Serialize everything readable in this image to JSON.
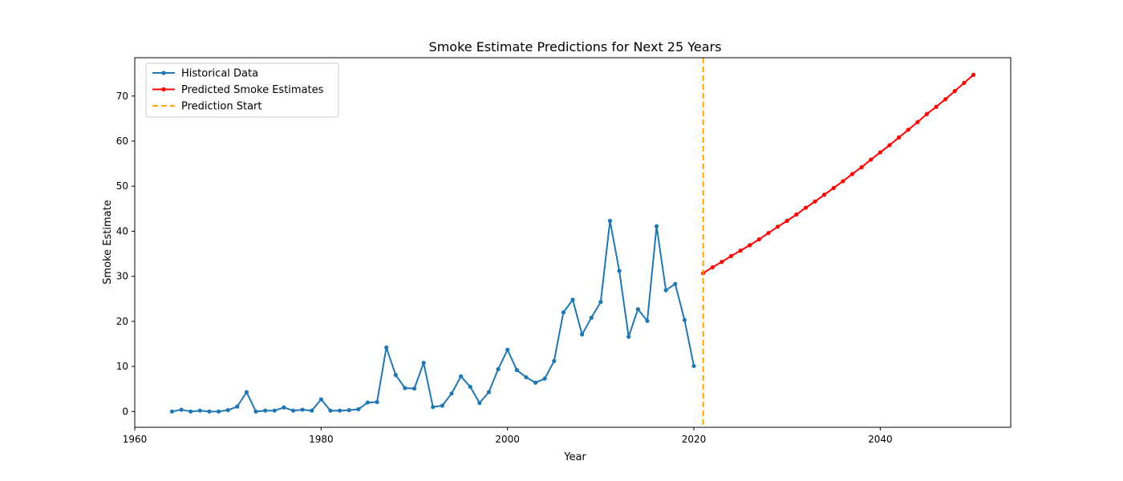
{
  "chart_data": {
    "type": "line",
    "title": "Smoke Estimate Predictions for Next 25 Years",
    "xlabel": "Year",
    "ylabel": "Smoke Estimate",
    "xlim": [
      1960,
      2054
    ],
    "ylim": [
      -3.5,
      78.5
    ],
    "xticks": [
      1960,
      1980,
      2000,
      2020,
      2040
    ],
    "yticks": [
      0,
      10,
      20,
      30,
      40,
      50,
      60,
      70
    ],
    "grid": false,
    "legend_position": "top-left",
    "series": [
      {
        "name": "Historical Data",
        "color": "#1f77b4",
        "marker": "circle",
        "x": [
          1964,
          1965,
          1966,
          1967,
          1968,
          1969,
          1970,
          1971,
          1972,
          1973,
          1974,
          1975,
          1976,
          1977,
          1978,
          1979,
          1980,
          1981,
          1982,
          1983,
          1984,
          1985,
          1986,
          1987,
          1988,
          1989,
          1990,
          1991,
          1992,
          1993,
          1994,
          1995,
          1996,
          1997,
          1998,
          1999,
          2000,
          2001,
          2002,
          2003,
          2004,
          2005,
          2006,
          2007,
          2008,
          2009,
          2010,
          2011,
          2012,
          2013,
          2014,
          2015,
          2016,
          2017,
          2018,
          2019,
          2020
        ],
        "y": [
          0.0,
          0.4,
          0.0,
          0.2,
          0.0,
          0.0,
          0.3,
          1.1,
          4.3,
          0.0,
          0.2,
          0.2,
          0.9,
          0.2,
          0.4,
          0.2,
          2.7,
          0.2,
          0.2,
          0.3,
          0.5,
          2.0,
          2.1,
          14.2,
          8.1,
          5.2,
          5.1,
          10.8,
          1.0,
          1.3,
          4.0,
          7.8,
          5.5,
          1.9,
          4.3,
          9.4,
          13.7,
          9.2,
          7.6,
          6.4,
          7.3,
          11.2,
          22.0,
          24.8,
          17.1,
          20.8,
          24.3,
          42.3,
          31.2,
          16.6,
          22.7,
          20.1,
          41.1,
          26.9,
          28.3,
          20.3,
          10.1
        ]
      },
      {
        "name": "Predicted Smoke Estimates",
        "color": "#ff0000",
        "marker": "circle",
        "x": [
          2021,
          2022,
          2023,
          2024,
          2025,
          2026,
          2027,
          2028,
          2029,
          2030,
          2031,
          2032,
          2033,
          2034,
          2035,
          2036,
          2037,
          2038,
          2039,
          2040,
          2041,
          2042,
          2043,
          2044,
          2045,
          2046,
          2047,
          2048,
          2049,
          2050
        ],
        "y": [
          30.7,
          32.0,
          33.2,
          34.5,
          35.7,
          36.9,
          38.2,
          39.6,
          41.0,
          42.3,
          43.7,
          45.2,
          46.6,
          48.1,
          49.6,
          51.1,
          52.7,
          54.2,
          55.9,
          57.5,
          59.1,
          60.8,
          62.5,
          64.2,
          66.0,
          67.6,
          69.3,
          71.1,
          72.9,
          74.7
        ]
      },
      {
        "name": "Prediction Start",
        "color": "#ffa500",
        "style": "dashed",
        "x_value": 2021
      }
    ]
  }
}
